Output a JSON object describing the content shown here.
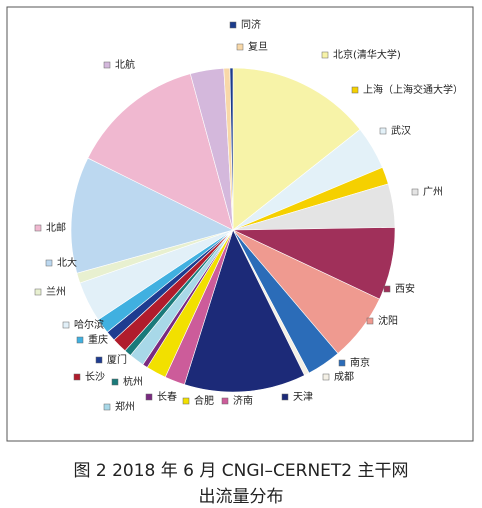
{
  "chart_data": {
    "type": "pie",
    "title": [
      "图 2 2018 年 6 月 CNGI–CERNET2 主干网",
      "出流量分布"
    ],
    "categories": [
      "北京(清华大学)",
      "武汉",
      "上海（上海交通大学）",
      "广州",
      "西安",
      "沈阳",
      "南京",
      "成都",
      "天津",
      "济南",
      "合肥",
      "长春",
      "郑州",
      "杭州",
      "长沙",
      "厦门",
      "重庆",
      "哈尔滨",
      "兰州",
      "北大",
      "北邮",
      "北航",
      "复旦",
      "同济"
    ],
    "values": [
      14.2,
      4.3,
      1.7,
      4.3,
      7.2,
      6.7,
      3.4,
      0.5,
      12,
      2,
      2,
      0.5,
      1.5,
      0.7,
      1.5,
      1,
      1.5,
      4,
      1,
      11.5,
      13.3,
      3.3,
      0.6,
      0.3
    ],
    "colors": [
      "#f7f3a8",
      "#e3f1f8",
      "#f5d000",
      "#e4e4e4",
      "#a0305a",
      "#ef9a90",
      "#2b6cb8",
      "#f4f0e6",
      "#1c2a78",
      "#cc5c9a",
      "#f2e000",
      "#7a2a80",
      "#a8d8e8",
      "#1a7a7a",
      "#b01c2c",
      "#1e3c90",
      "#40b0e0",
      "#e2f0f8",
      "#e8f0d0",
      "#bcd8f0",
      "#f0b8d0",
      "#d4b8dc",
      "#f8d8a8",
      "#1c3c8c"
    ]
  }
}
